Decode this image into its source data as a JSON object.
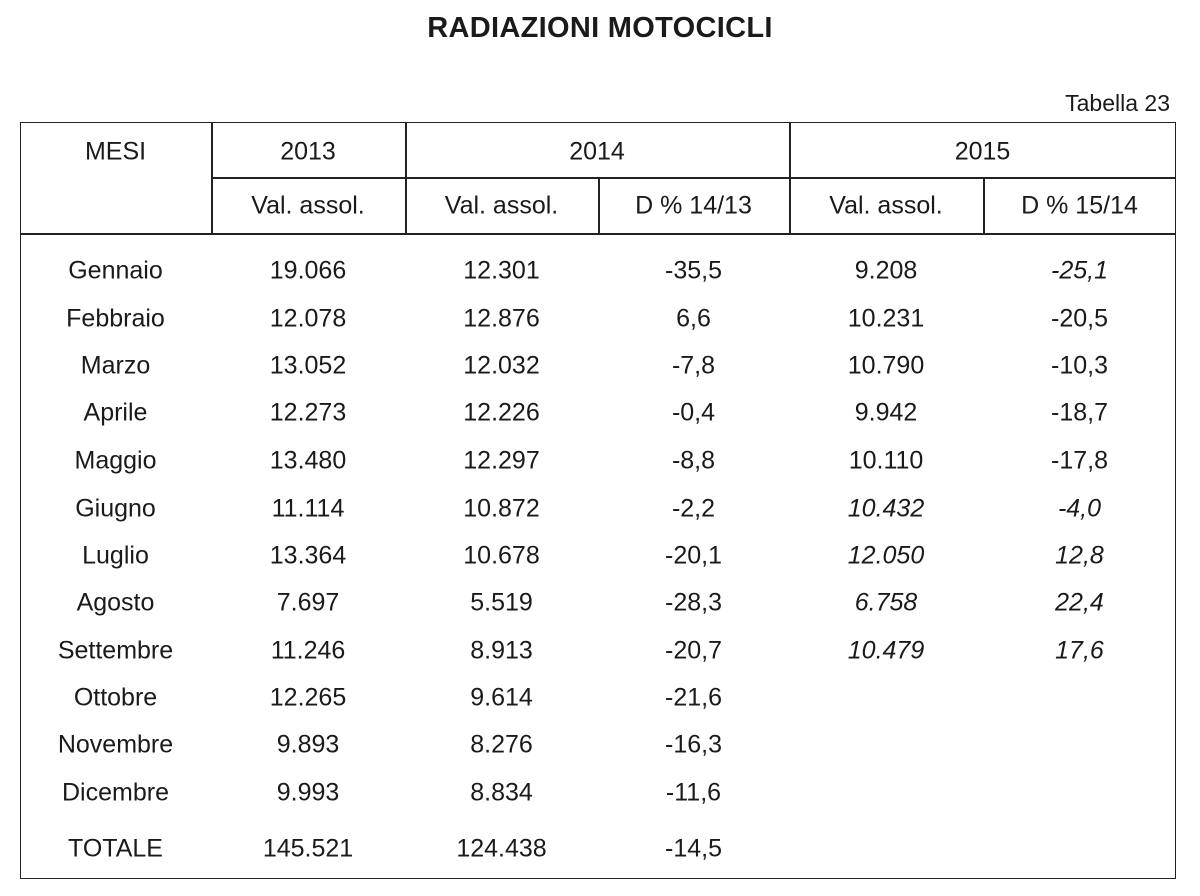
{
  "title": "RADIAZIONI MOTOCICLI",
  "table_label": "Tabella 23",
  "headers": {
    "mesi": "MESI",
    "y2013": "2013",
    "y2014": "2014",
    "y2015": "2015",
    "val_2013": "Val. assol.",
    "val_2014": "Val. assol.",
    "d_1413": "D % 14/13",
    "val_2015": "Val. assol.",
    "d_1514": "D % 15/14"
  },
  "rows": [
    {
      "mese": "Gennaio",
      "v2013": "19.066",
      "v2014": "12.301",
      "d1413": "-35,5",
      "v2015": "9.208",
      "d1514": "-25,1"
    },
    {
      "mese": "Febbraio",
      "v2013": "12.078",
      "v2014": "12.876",
      "d1413": "6,6",
      "v2015": "10.231",
      "d1514": "-20,5"
    },
    {
      "mese": "Marzo",
      "v2013": "13.052",
      "v2014": "12.032",
      "d1413": "-7,8",
      "v2015": "10.790",
      "d1514": "-10,3"
    },
    {
      "mese": "Aprile",
      "v2013": "12.273",
      "v2014": "12.226",
      "d1413": "-0,4",
      "v2015": "9.942",
      "d1514": "-18,7"
    },
    {
      "mese": "Maggio",
      "v2013": "13.480",
      "v2014": "12.297",
      "d1413": "-8,8",
      "v2015": "10.110",
      "d1514": "-17,8"
    },
    {
      "mese": "Giugno",
      "v2013": "11.114",
      "v2014": "10.872",
      "d1413": "-2,2",
      "v2015": "10.432",
      "d1514": "-4,0"
    },
    {
      "mese": "Luglio",
      "v2013": "13.364",
      "v2014": "10.678",
      "d1413": "-20,1",
      "v2015": "12.050",
      "d1514": "12,8"
    },
    {
      "mese": "Agosto",
      "v2013": "7.697",
      "v2014": "5.519",
      "d1413": "-28,3",
      "v2015": "6.758",
      "d1514": "22,4"
    },
    {
      "mese": "Settembre",
      "v2013": "11.246",
      "v2014": "8.913",
      "d1413": "-20,7",
      "v2015": "10.479",
      "d1514": "17,6"
    },
    {
      "mese": "Ottobre",
      "v2013": "12.265",
      "v2014": "9.614",
      "d1413": "-21,6",
      "v2015": "",
      "d1514": ""
    },
    {
      "mese": "Novembre",
      "v2013": "9.893",
      "v2014": "8.276",
      "d1413": "-16,3",
      "v2015": "",
      "d1514": ""
    },
    {
      "mese": "Dicembre",
      "v2013": "9.993",
      "v2014": "8.834",
      "d1413": "-11,6",
      "v2015": "",
      "d1514": ""
    }
  ],
  "totale": {
    "mese": "TOTALE",
    "v2013": "145.521",
    "v2014": "124.438",
    "d1413": "-14,5",
    "v2015": "",
    "d1514": ""
  }
}
